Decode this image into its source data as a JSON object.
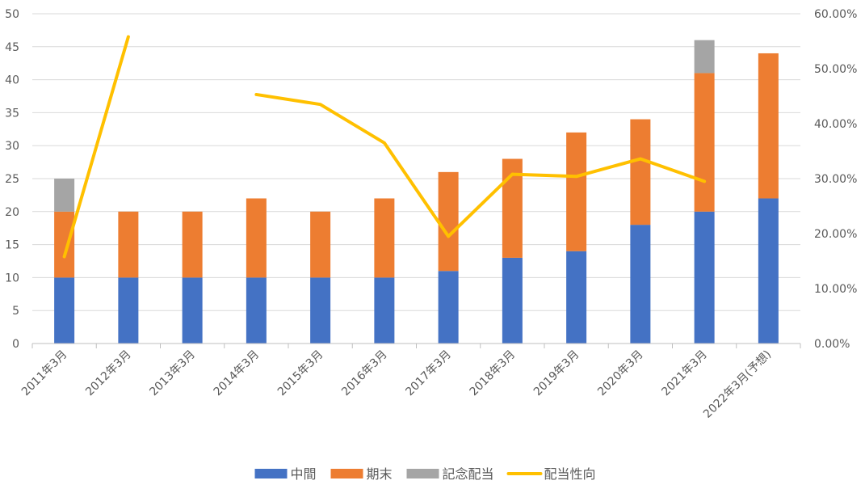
{
  "chart_data": {
    "type": "bar",
    "stacked": true,
    "categories": [
      "2011年3月",
      "2012年3月",
      "2013年3月",
      "2014年3月",
      "2015年3月",
      "2016年3月",
      "2017年3月",
      "2018年3月",
      "2019年3月",
      "2020年3月",
      "2021年3月",
      "2022年3月(予想)"
    ],
    "series": [
      {
        "name": "中間",
        "type": "bar",
        "color": "#4472C4",
        "values": [
          10,
          10,
          10,
          10,
          10,
          10,
          11,
          13,
          14,
          18,
          20,
          22
        ]
      },
      {
        "name": "期末",
        "type": "bar",
        "color": "#ED7D31",
        "values": [
          10,
          10,
          10,
          12,
          10,
          12,
          15,
          15,
          18,
          16,
          21,
          22
        ]
      },
      {
        "name": "記念配当",
        "type": "bar",
        "color": "#A5A5A5",
        "values": [
          5,
          0,
          0,
          0,
          0,
          0,
          0,
          0,
          0,
          0,
          5,
          0
        ]
      },
      {
        "name": "配当性向",
        "type": "line",
        "axis": "right",
        "color": "#FFC000",
        "values": [
          15.8,
          55.8,
          null,
          45.3,
          43.5,
          36.5,
          19.5,
          30.8,
          30.4,
          33.6,
          29.5,
          null
        ]
      }
    ],
    "y_left": {
      "min": 0,
      "max": 50,
      "step": 5,
      "ticks": [
        "0",
        "5",
        "10",
        "15",
        "20",
        "25",
        "30",
        "35",
        "40",
        "45",
        "50"
      ]
    },
    "y_right": {
      "min": 0,
      "max": 60,
      "step": 10,
      "ticks": [
        "0.00%",
        "10.00%",
        "20.00%",
        "30.00%",
        "40.00%",
        "50.00%",
        "60.00%"
      ]
    },
    "grid": true,
    "legend_position": "bottom"
  }
}
